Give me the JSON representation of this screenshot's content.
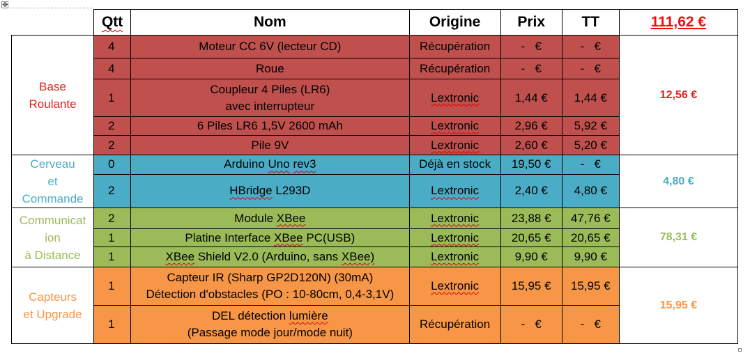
{
  "header": {
    "qtt": "Qtt",
    "nom": "Nom",
    "origine": "Origine",
    "prix": "Prix",
    "tt": "TT",
    "total": "111,62 €"
  },
  "colors": {
    "base": "#c0504d",
    "cerveau": "#4bacc6",
    "comm": "#9bbb59",
    "capteurs": "#f79646",
    "label_base": "#e02020",
    "label_cerveau": "#4bacc6",
    "label_comm": "#9bbb59",
    "label_capteurs": "#f79646"
  },
  "groups": [
    {
      "label_lines": [
        "Base",
        "Roulante"
      ],
      "sum": "12,56 €",
      "rows": [
        {
          "qtt": "4",
          "nom": [
            "Moteur CC 6V (lecteur CD)"
          ],
          "origine": "Récupération",
          "prix": "-   €",
          "tt": "-   €"
        },
        {
          "qtt": "4",
          "nom": [
            "Roue"
          ],
          "origine": "Récupération",
          "prix": "-   €",
          "tt": "-   €"
        },
        {
          "qtt": "1",
          "nom": [
            "Coupleur 4 Piles (LR6)",
            "avec interrupteur"
          ],
          "origine": "Lextronic",
          "prix": "1,44 €",
          "tt": "1,44 €"
        },
        {
          "qtt": "2",
          "nom": [
            "6 Piles LR6 1,5V 2600 mAh"
          ],
          "origine": "Lextronic",
          "prix": "2,96 €",
          "tt": "5,92 €"
        },
        {
          "qtt": "2",
          "nom": [
            "Pile 9V"
          ],
          "origine": "Lextronic",
          "prix": "2,60 €",
          "tt": "5,20 €"
        }
      ]
    },
    {
      "label_lines": [
        "Cerveau",
        "et",
        "Commande"
      ],
      "sum": "4,80 €",
      "rows": [
        {
          "qtt": "0",
          "nom": [
            "Arduino Uno rev3"
          ],
          "origine": "Déjà en stock",
          "prix": "19,50 €",
          "tt": "-   €"
        },
        {
          "qtt": "2",
          "nom": [
            "HBridge L293D"
          ],
          "origine": "Lextronic",
          "prix": "2,40 €",
          "tt": "4,80 €"
        }
      ]
    },
    {
      "label_lines": [
        "Communicat",
        "ion",
        "à Distance"
      ],
      "sum": "78,31 €",
      "rows": [
        {
          "qtt": "2",
          "nom": [
            "Module XBee"
          ],
          "origine": "Lextronic",
          "prix": "23,88 €",
          "tt": "47,76 €"
        },
        {
          "qtt": "1",
          "nom": [
            "Platine Interface XBee PC(USB)"
          ],
          "origine": "Lextronic",
          "prix": "20,65 €",
          "tt": "20,65 €"
        },
        {
          "qtt": "1",
          "nom": [
            "XBee Shield V2.0 (Arduino, sans XBee)"
          ],
          "origine": "Lextronic",
          "prix": "9,90 €",
          "tt": "9,90 €"
        }
      ]
    },
    {
      "label_lines": [
        "Capteurs",
        "et Upgrade"
      ],
      "sum": "15,95 €",
      "rows": [
        {
          "qtt": "1",
          "nom": [
            "Capteur IR (Sharp GP2D120N) (30mA)",
            "Détection d'obstacles (PO : 10-80cm, 0,4-3,1V)"
          ],
          "origine": "Lextronic",
          "prix": "15,95 €",
          "tt": "15,95 €"
        },
        {
          "qtt": "1",
          "nom": [
            "DEL détection lumière",
            "(Passage mode jour/mode nuit)"
          ],
          "origine": "Récupération",
          "prix": "-   €",
          "tt": "-   €"
        }
      ]
    }
  ]
}
